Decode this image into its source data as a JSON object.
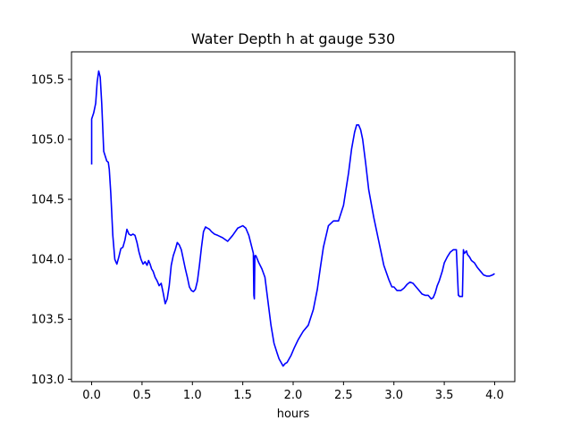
{
  "colors": {
    "line": "#0000ff",
    "axes": "#000000",
    "background": "#ffffff"
  },
  "chart_data": {
    "type": "line",
    "title": "Water Depth h at gauge 530",
    "xlabel": "hours",
    "ylabel": "",
    "xlim": [
      -0.2,
      4.2
    ],
    "ylim": [
      102.98,
      105.73
    ],
    "grid": false,
    "legend": "none",
    "x_ticks": [
      0.0,
      0.5,
      1.0,
      1.5,
      2.0,
      2.5,
      3.0,
      3.5,
      4.0
    ],
    "x_tick_labels": [
      "0.0",
      "0.5",
      "1.0",
      "1.5",
      "2.0",
      "2.5",
      "3.0",
      "3.5",
      "4.0"
    ],
    "y_ticks": [
      103.0,
      103.5,
      104.0,
      104.5,
      105.0,
      105.5
    ],
    "y_tick_labels": [
      "103.0",
      "103.5",
      "104.0",
      "104.5",
      "105.0",
      "105.5"
    ],
    "series": [
      {
        "color": "#0000ff",
        "x": [
          0.0,
          0.0,
          0.0,
          0.02,
          0.04,
          0.055,
          0.07,
          0.085,
          0.1,
          0.12,
          0.15,
          0.165,
          0.175,
          0.19,
          0.21,
          0.23,
          0.25,
          0.27,
          0.29,
          0.31,
          0.33,
          0.35,
          0.37,
          0.39,
          0.41,
          0.43,
          0.45,
          0.47,
          0.49,
          0.51,
          0.53,
          0.55,
          0.565,
          0.58,
          0.595,
          0.61,
          0.63,
          0.65,
          0.67,
          0.69,
          0.71,
          0.73,
          0.75,
          0.77,
          0.79,
          0.81,
          0.83,
          0.85,
          0.87,
          0.89,
          0.91,
          0.93,
          0.95,
          0.97,
          0.99,
          1.01,
          1.03,
          1.05,
          1.07,
          1.09,
          1.11,
          1.13,
          1.15,
          1.17,
          1.19,
          1.22,
          1.25,
          1.3,
          1.35,
          1.4,
          1.45,
          1.5,
          1.53,
          1.56,
          1.59,
          1.605,
          1.61,
          1.615,
          1.62,
          1.63,
          1.66,
          1.69,
          1.72,
          1.75,
          1.78,
          1.81,
          1.84,
          1.86,
          1.88,
          1.9,
          1.92,
          1.94,
          1.96,
          1.98,
          2.01,
          2.05,
          2.1,
          2.15,
          2.2,
          2.24,
          2.27,
          2.3,
          2.35,
          2.4,
          2.45,
          2.5,
          2.55,
          2.58,
          2.61,
          2.63,
          2.65,
          2.67,
          2.69,
          2.72,
          2.75,
          2.8,
          2.85,
          2.9,
          2.95,
          2.98,
          3.0,
          3.03,
          3.07,
          3.1,
          3.13,
          3.16,
          3.19,
          3.22,
          3.25,
          3.28,
          3.31,
          3.34,
          3.37,
          3.39,
          3.41,
          3.43,
          3.45,
          3.48,
          3.5,
          3.53,
          3.56,
          3.59,
          3.62,
          3.64,
          3.645,
          3.65,
          3.66,
          3.68,
          3.69,
          3.695,
          3.7,
          3.71,
          3.72,
          3.73,
          3.75,
          3.77,
          3.8,
          3.83,
          3.86,
          3.89,
          3.92,
          3.95,
          3.98,
          4.0
        ],
        "y": [
          104.79,
          105.17,
          105.17,
          105.22,
          105.3,
          105.48,
          105.57,
          105.52,
          105.3,
          104.9,
          104.82,
          104.81,
          104.75,
          104.55,
          104.2,
          104.0,
          103.96,
          104.02,
          104.09,
          104.1,
          104.16,
          104.25,
          104.21,
          104.2,
          104.21,
          104.2,
          104.14,
          104.06,
          104.0,
          103.96,
          103.98,
          103.95,
          103.99,
          103.96,
          103.92,
          103.9,
          103.85,
          103.82,
          103.78,
          103.8,
          103.72,
          103.63,
          103.67,
          103.78,
          103.95,
          104.03,
          104.08,
          104.14,
          104.12,
          104.08,
          104.0,
          103.92,
          103.85,
          103.77,
          103.74,
          103.73,
          103.75,
          103.82,
          103.95,
          104.1,
          104.23,
          104.27,
          104.26,
          104.25,
          104.23,
          104.21,
          104.2,
          104.18,
          104.15,
          104.2,
          104.26,
          104.28,
          104.26,
          104.2,
          104.1,
          104.05,
          103.7,
          103.67,
          104.03,
          104.03,
          103.97,
          103.92,
          103.85,
          103.65,
          103.45,
          103.3,
          103.22,
          103.17,
          103.14,
          103.11,
          103.13,
          103.14,
          103.17,
          103.2,
          103.26,
          103.33,
          103.4,
          103.45,
          103.58,
          103.75,
          103.93,
          104.1,
          104.28,
          104.32,
          104.32,
          104.45,
          104.72,
          104.92,
          105.06,
          105.12,
          105.12,
          105.08,
          105.0,
          104.8,
          104.58,
          104.35,
          104.15,
          103.95,
          103.83,
          103.77,
          103.77,
          103.74,
          103.74,
          103.76,
          103.79,
          103.81,
          103.8,
          103.77,
          103.74,
          103.71,
          103.7,
          103.7,
          103.67,
          103.68,
          103.72,
          103.78,
          103.82,
          103.9,
          103.97,
          104.02,
          104.06,
          104.08,
          104.08,
          103.7,
          103.7,
          103.69,
          103.69,
          103.69,
          104.08,
          104.06,
          104.05,
          104.06,
          104.07,
          104.04,
          104.02,
          103.99,
          103.97,
          103.93,
          103.9,
          103.87,
          103.86,
          103.86,
          103.87,
          103.88
        ]
      }
    ]
  }
}
